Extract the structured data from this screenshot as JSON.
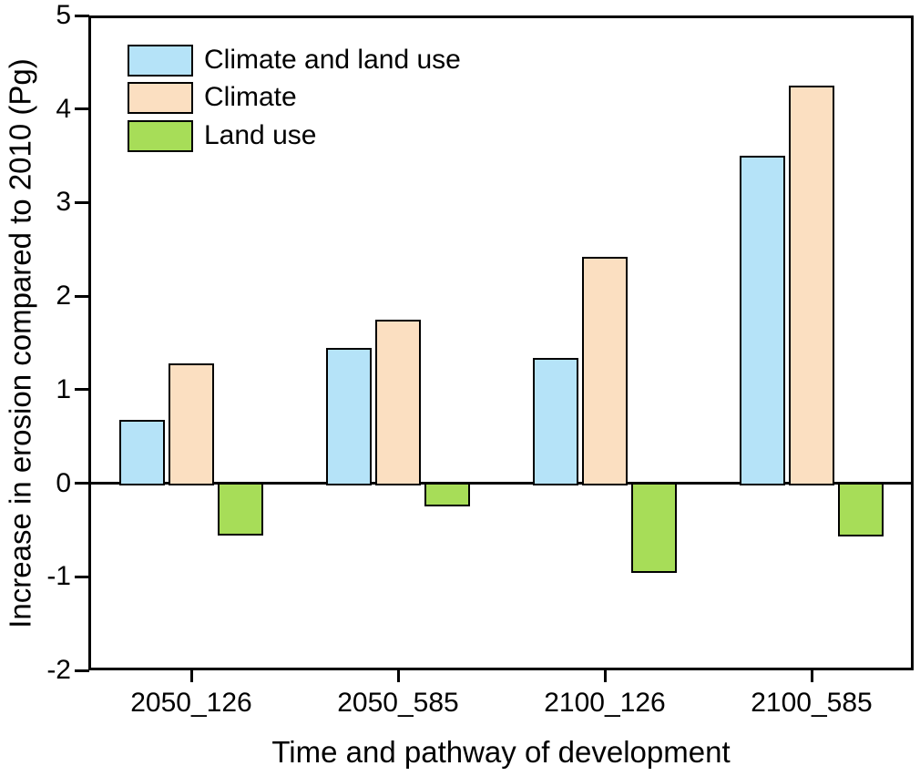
{
  "chart_data": {
    "type": "bar",
    "title": "",
    "xlabel": "Time and pathway of development",
    "ylabel": "Increase in erosion compared to 2010 (Pg)",
    "categories": [
      "2050_126",
      "2050_585",
      "2100_126",
      "2100_585"
    ],
    "series": [
      {
        "name": "Climate and land use",
        "color": "#B5E3F8",
        "values": [
          0.68,
          1.45,
          1.34,
          3.5
        ]
      },
      {
        "name": "Climate",
        "color": "#FBDFC1",
        "values": [
          1.28,
          1.75,
          2.42,
          4.25
        ]
      },
      {
        "name": "Land use",
        "color": "#A7DD58",
        "values": [
          -0.55,
          -0.24,
          -0.95,
          -0.56
        ]
      }
    ],
    "ylim": [
      -2,
      5
    ],
    "yticks": [
      5,
      4,
      3,
      2,
      1,
      0,
      -1,
      -2
    ],
    "grid": false,
    "zero_line": true,
    "legend_position": "top-left",
    "axis_color": "#000000",
    "background_color": "#FFFFFF"
  }
}
